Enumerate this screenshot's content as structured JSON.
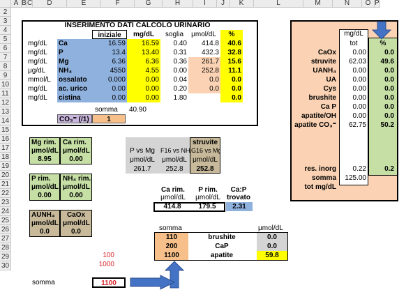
{
  "columns": [
    "A",
    "B",
    "C",
    "D",
    "E",
    "F",
    "G",
    "H",
    "I",
    "J",
    "K",
    "L",
    "M",
    "N",
    "O",
    "P"
  ],
  "rows": [
    "2",
    "3",
    "4",
    "5",
    "6",
    "7",
    "8",
    "9",
    "10",
    "11",
    "12",
    "13",
    "14",
    "15",
    "16",
    "17",
    "18",
    "19",
    "20",
    "21",
    "22",
    "23",
    "24",
    "25",
    "26",
    "27",
    "28",
    "29",
    "30"
  ],
  "title": "INSERIMENTO DATI CALCOLO URINARIO",
  "headers": {
    "iniziale": "iniziale",
    "mgdl": "mg/dL",
    "soglia": "soglia",
    "umol": "μmol/dL",
    "pct": "%"
  },
  "main_rows": [
    {
      "unit": "mg/dL",
      "name": "Ca",
      "iniziale": "16.59",
      "mgdl": "16.59",
      "soglia": "0.40",
      "umol": "414.8",
      "pct": "40.6"
    },
    {
      "unit": "mg/dL",
      "name": "P",
      "iniziale": "13.4",
      "mgdl": "13.40",
      "soglia": "0.31",
      "umol": "432.3",
      "pct": "32.8"
    },
    {
      "unit": "mg/dL",
      "name": "Mg",
      "iniziale": "6.36",
      "mgdl": "6.36",
      "soglia": "0.36",
      "umol": "261.7",
      "pct": "15.6"
    },
    {
      "unit": "μg/dL",
      "name": "NH₄",
      "iniziale": "4550",
      "mgdl": "4.55",
      "soglia": "0.00",
      "umol": "252.8",
      "pct": "11.1"
    },
    {
      "unit": "mmol/L",
      "name": "ossalato",
      "iniziale": "0.000",
      "mgdl": "0.00",
      "soglia": "0.04",
      "umol": "0.0",
      "pct": "0.0"
    },
    {
      "unit": "mg/dL",
      "name": "ac. urico",
      "iniziale": "0.00",
      "mgdl": "0.00",
      "soglia": "0.20",
      "umol": "0.0",
      "pct": "0.0"
    },
    {
      "unit": "mg/dL",
      "name": "cistina",
      "iniziale": "0.00",
      "mgdl": "0.00",
      "soglia": "1.80",
      "umol": "",
      "pct": "0.0"
    }
  ],
  "somma_label": "somma",
  "somma_value": "40.90",
  "co3_label": "CO₃⁼ (/1)",
  "co3_value": "1",
  "right_panel": {
    "hdr_mgdl": "mg/dL",
    "hdr_tot": "tot",
    "hdr_pct": "%",
    "items": [
      {
        "label": "CaOx",
        "tot": "0.00",
        "pct": "0.0"
      },
      {
        "label": "struvite",
        "tot": "62.03",
        "pct": "49.6"
      },
      {
        "label": "UANH₄",
        "tot": "0.00",
        "pct": "0.0"
      },
      {
        "label": "UA",
        "tot": "0.00",
        "pct": "0.0"
      },
      {
        "label": "Cys",
        "tot": "0.00",
        "pct": "0.0"
      },
      {
        "label": "brushite",
        "tot": "0.00",
        "pct": "0.0"
      },
      {
        "label": "Ca P",
        "tot": "0.00",
        "pct": "0.0"
      },
      {
        "label": "apatite/OH",
        "tot": "0.00",
        "pct": "0.0"
      },
      {
        "label": "apatite CO₃⁼",
        "tot": "62.75",
        "pct": "50.2"
      }
    ],
    "res_label": "res. inorg",
    "res_tot": "0.22",
    "res_pct": "0.2",
    "somma_label": "somma",
    "somma_val": "125.00",
    "tot_label": "tot mg/dL"
  },
  "mg_rim": {
    "l1": "Mg rim.",
    "l2": "μmol/dL",
    "v": "8.95"
  },
  "ca_rim_a": {
    "l1": "Ca rim.",
    "l2": "μmol/dL",
    "v": "0.00"
  },
  "p_rim": {
    "l1": "P rim.",
    "l2": "μmol/dL",
    "v": "0.00"
  },
  "nh4_rim": {
    "l1": "NH₄ rim.",
    "l2": "μmol/dL",
    "v": "0.00"
  },
  "aunh4": {
    "l1": "AUNH₄",
    "l2": "μmol/dL",
    "v": "0.0"
  },
  "caox": {
    "l1": "CaOx",
    "l2": "μmol/dL",
    "v": "0.0"
  },
  "comparison": {
    "a1": "P vs Mg",
    "a2": "μmol/dL",
    "av": "261.7",
    "b1": "F16 vs NH₄",
    "b2": "μmol/dL",
    "bv": "252.8",
    "c0": "struvite",
    "c1": "G16 vs Mg",
    "c2": "μmol/dL",
    "cv": "252.8"
  },
  "rim_block": {
    "ca1": "Ca rim.",
    "ca2": "μmol/dL",
    "cav": "414.8",
    "p1": "P rim.",
    "p2": "μmol/dL",
    "pv": "179.5",
    "r1": "Ca:P",
    "r2": "trovato",
    "rv": "2.31"
  },
  "bottom": {
    "somma": "somma",
    "umol": "μmol/dL",
    "rows": [
      {
        "k": "110",
        "name": "brushite",
        "v": "0.0"
      },
      {
        "k": "200",
        "name": "CaP",
        "v": "0.0"
      },
      {
        "k": "1100",
        "name": "apatite",
        "v": "59.8"
      }
    ]
  },
  "red_vals": [
    "100",
    "1000"
  ],
  "somma29_label": "somma",
  "somma29_value": "1100"
}
